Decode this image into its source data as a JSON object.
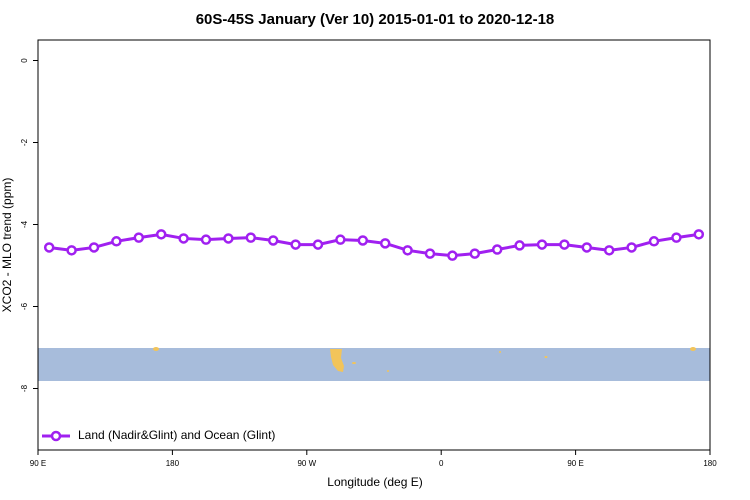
{
  "chart_data": {
    "type": "line",
    "title": "60S-45S January (Ver 10)   2015-01-01 to 2020-12-18",
    "x_label": "Longitude (deg E)",
    "y_label": "XCO2 - MLO trend (ppm)",
    "x": [
      97.5,
      112.5,
      127.5,
      142.5,
      157.5,
      172.5,
      187.5,
      202.5,
      217.5,
      232.5,
      247.5,
      262.5,
      277.5,
      292.5,
      307.5,
      322.5,
      337.5,
      352.5,
      367.5,
      382.5,
      397.5,
      412.5,
      427.5,
      442.5,
      457.5,
      472.5,
      487.5,
      502.5,
      517.5,
      532.5
    ],
    "series": [
      {
        "name": "Land (Nadir&Glint) and Ocean (Glint)",
        "color": "#a020f0",
        "values": [
          -4.56,
          -4.63,
          -4.56,
          -4.41,
          -4.32,
          -4.24,
          -4.34,
          -4.37,
          -4.34,
          -4.32,
          -4.39,
          -4.49,
          -4.49,
          -4.37,
          -4.39,
          -4.46,
          -4.63,
          -4.71,
          -4.76,
          -4.71,
          -4.61,
          -4.51,
          -4.49,
          -4.49,
          -4.56,
          -4.63,
          -4.56,
          -4.41,
          -4.32,
          -4.24
        ]
      }
    ],
    "xlim": [
      90,
      540
    ],
    "xticks": [
      {
        "value": 90,
        "label": "90 E"
      },
      {
        "value": 180,
        "label": "180"
      },
      {
        "value": 270,
        "label": "90 W"
      },
      {
        "value": 360,
        "label": "0"
      },
      {
        "value": 450,
        "label": "90 E"
      },
      {
        "value": 540,
        "label": "180"
      }
    ],
    "ylim": [
      -9.5,
      0.5
    ],
    "yticks": [
      0,
      -2,
      -4,
      -6,
      -8
    ],
    "legend": "bottomleft"
  }
}
